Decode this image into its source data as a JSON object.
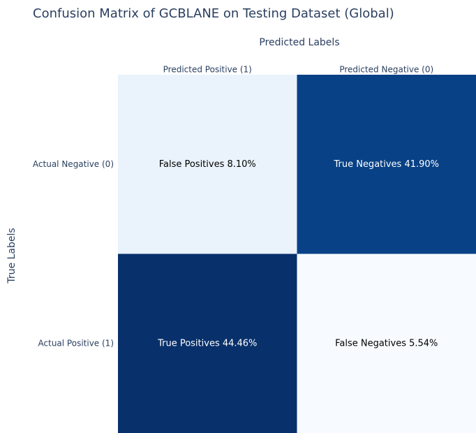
{
  "chart_data": {
    "type": "heatmap",
    "title": "Confusion Matrix of GCBLANE on Testing Dataset (Global)",
    "x_label": "Predicted Labels",
    "y_label": "True Labels",
    "x_categories": [
      "Predicted Positive (1)",
      "Predicted Negative (0)"
    ],
    "y_categories": [
      "Actual Negative (0)",
      "Actual Positive (1)"
    ],
    "values": [
      [
        8.1,
        41.9
      ],
      [
        44.46,
        5.54
      ]
    ],
    "value_labels": [
      [
        "False Positives 8.10%",
        "True Negatives 41.90%"
      ],
      [
        "True Positives 44.46%",
        "False Negatives 5.54%"
      ]
    ],
    "colorscale": [
      "#f7fbff",
      "#deebf7",
      "#c6dbef",
      "#9ecae1",
      "#6baed6",
      "#4292c6",
      "#2171b5",
      "#08519c",
      "#08306b"
    ]
  }
}
